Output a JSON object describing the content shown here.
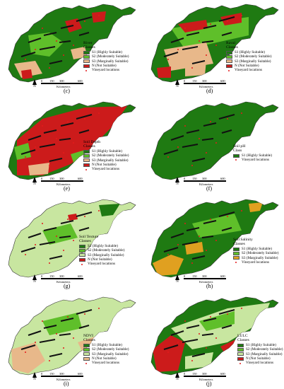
{
  "colors": {
    "s1": "#1f7a12",
    "s2": "#5fbf2a",
    "s3": "#c8e6a0",
    "s3_orange": "#e0a020",
    "s3_tan": "#e8b88a",
    "n": "#cc1b1b",
    "vineyard": "#e41a1c",
    "black": "#111111"
  },
  "scale": {
    "ticks": [
      "0",
      "150",
      "300",
      "600"
    ],
    "units": "Kilometers"
  },
  "north_label": "N",
  "panels": [
    {
      "id": "c",
      "label": "(c)",
      "title": "River",
      "subtitle": "Classes",
      "classes": [
        {
          "label": "S1 (Highly Suitable)",
          "color": "#1f7a12"
        },
        {
          "label": "S2 (Moderately Suitable)",
          "color": "#5fbf2a"
        },
        {
          "label": "S3 (Marginally Suitable)",
          "color": "#e8b88a"
        },
        {
          "label": "N (Not Suitable)",
          "color": "#cc1b1b"
        }
      ],
      "point": "Vineyard locations"
    },
    {
      "id": "d",
      "label": "(d)",
      "title": "Raval",
      "subtitle": "Classes",
      "classes": [
        {
          "label": "S1 (Highly Suitable)",
          "color": "#1f7a12"
        },
        {
          "label": "S2 (Moderately Suitable)",
          "color": "#5fbf2a"
        },
        {
          "label": "S3 (Marginally Suitable)",
          "color": "#e8b88a"
        },
        {
          "label": "N (Not Suitable)",
          "color": "#cc1b1b"
        }
      ],
      "point": "Vineyard locations"
    },
    {
      "id": "e",
      "label": "(e)",
      "title": "Soil Depth",
      "subtitle": "Classes",
      "classes": [
        {
          "label": "S1 (Highly Suitable)",
          "color": "#1f7a12"
        },
        {
          "label": "S2 (Moderately Suitable)",
          "color": "#5fbf2a"
        },
        {
          "label": "S3 (Marginally Suitable)",
          "color": "#e8b88a"
        },
        {
          "label": "N (Not Suitable)",
          "color": "#cc1b1b"
        }
      ],
      "point": "Vineyard locations"
    },
    {
      "id": "f",
      "label": "(f)",
      "title": "Soil pH",
      "subtitle": "Class",
      "classes": [
        {
          "label": "S1 (Highly Suitable)",
          "color": "#1f7a12"
        }
      ],
      "point": "Vineyard locations"
    },
    {
      "id": "g",
      "label": "(g)",
      "title": "Soil Texture",
      "subtitle": "Classes",
      "classes": [
        {
          "label": "S1 (Highly Suitable)",
          "color": "#1f7a12"
        },
        {
          "label": "S2 (Moderately Suitable)",
          "color": "#5fbf2a"
        },
        {
          "label": "S3 (Marginally Suitable)",
          "color": "#c8e6a0"
        },
        {
          "label": "N (Not Suitable)",
          "color": "#cc1b1b"
        }
      ],
      "point": "Vineyard locations"
    },
    {
      "id": "h",
      "label": "(h)",
      "title": "Soil Salinity",
      "subtitle": "Classes",
      "classes": [
        {
          "label": "S1 (Highly Suitable)",
          "color": "#1f7a12"
        },
        {
          "label": "S2 (Moderately Suitable)",
          "color": "#5fbf2a"
        },
        {
          "label": "S3 (Marginally Suitable)",
          "color": "#e0a020"
        }
      ],
      "point": "Vineyard locations"
    },
    {
      "id": "i",
      "label": "(i)",
      "title": "NDVI",
      "subtitle": "Classes",
      "classes": [
        {
          "label": "S1 (Highly Suitable)",
          "color": "#1f7a12"
        },
        {
          "label": "S2 (Moderately Suitable)",
          "color": "#5fbf2a"
        },
        {
          "label": "S3 (Marginally Suitable)",
          "color": "#c8e6a0"
        },
        {
          "label": "N (Not Suitable)",
          "color": "#e8b88a"
        }
      ],
      "point": "Vineyard locations"
    },
    {
      "id": "j",
      "label": "(j)",
      "title": "LULC",
      "subtitle": "Classes",
      "classes": [
        {
          "label": "S1 (Highly Suitable)",
          "color": "#1f7a12"
        },
        {
          "label": "S2 (Moderately Suitable)",
          "color": "#5fbf2a"
        },
        {
          "label": "S3 (Marginally Suitable)",
          "color": "#c8e6a0"
        },
        {
          "label": "N (Not Suitable)",
          "color": "#cc1b1b"
        }
      ],
      "point": "Vineyard locations"
    }
  ]
}
